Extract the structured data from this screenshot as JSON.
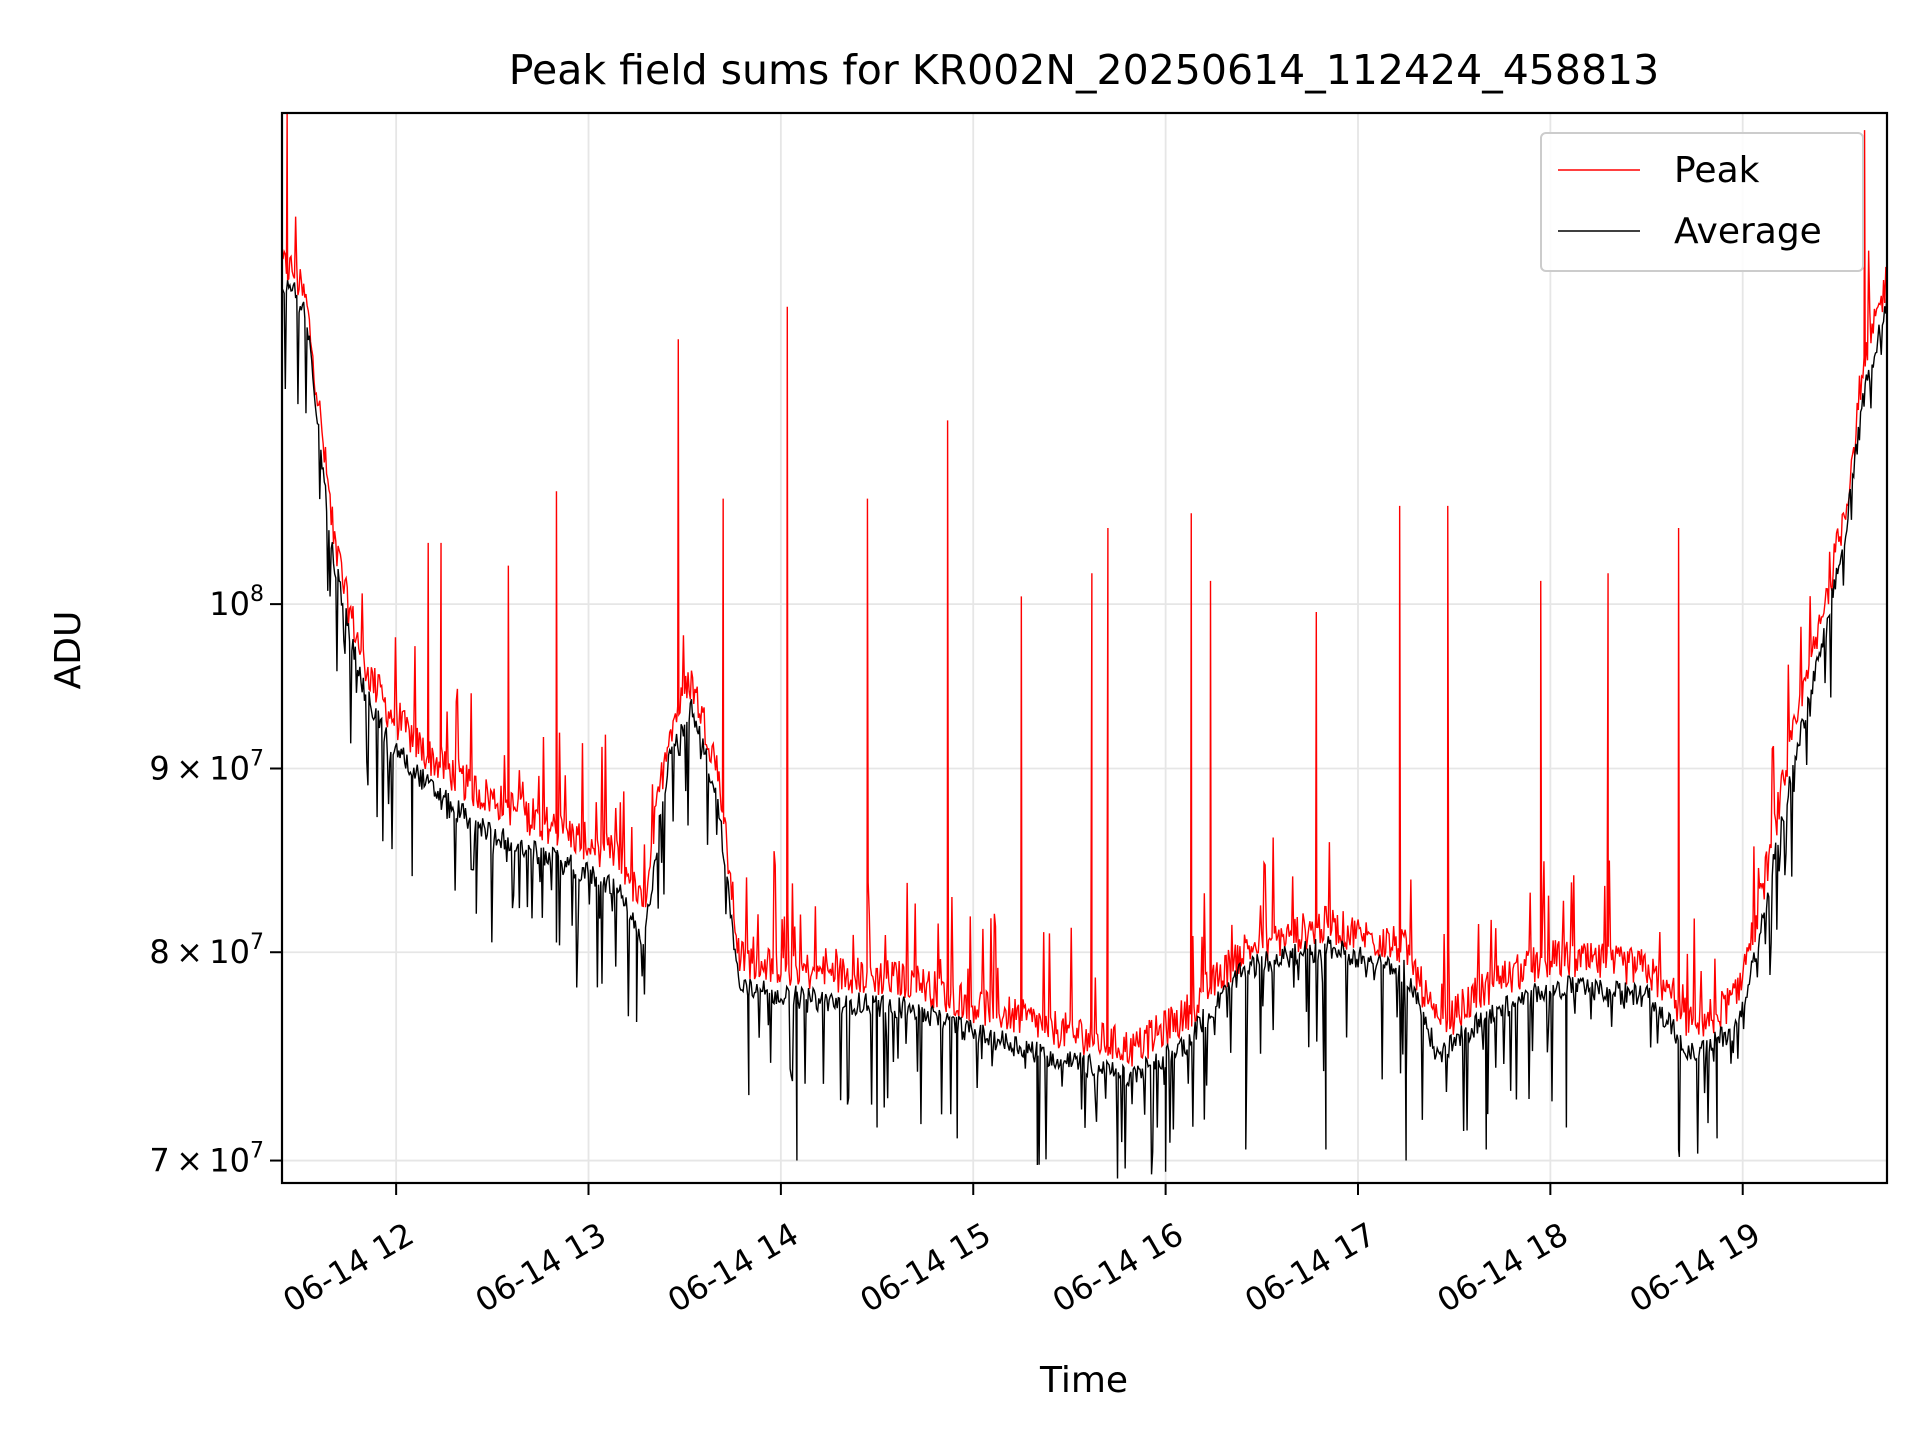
{
  "chart_data": {
    "type": "line",
    "title": "Peak field sums for KR002N_20250614_112424_458813",
    "xlabel": "Time",
    "ylabel": "ADU",
    "y_scale": "log",
    "ylim": [
      69000000,
      137000000
    ],
    "xlim": [
      "2025-06-14T11:24:24",
      "2025-06-14T19:45:00"
    ],
    "grid": true,
    "legend_position": "top-right",
    "x_tick_labels": [
      {
        "x": "2025-06-14T12:00",
        "label": "06-14 12"
      },
      {
        "x": "2025-06-14T13:00",
        "label": "06-14 13"
      },
      {
        "x": "2025-06-14T14:00",
        "label": "06-14 14"
      },
      {
        "x": "2025-06-14T15:00",
        "label": "06-14 15"
      },
      {
        "x": "2025-06-14T16:00",
        "label": "06-14 16"
      },
      {
        "x": "2025-06-14T17:00",
        "label": "06-14 17"
      },
      {
        "x": "2025-06-14T18:00",
        "label": "06-14 18"
      },
      {
        "x": "2025-06-14T19:00",
        "label": "06-14 19"
      }
    ],
    "y_ticks": [
      {
        "value": 70000000,
        "base": "7",
        "exponent": "7"
      },
      {
        "value": 80000000,
        "base": "8",
        "exponent": "7"
      },
      {
        "value": 90000000,
        "base": "9",
        "exponent": "7"
      },
      {
        "value": 100000000,
        "base": "10",
        "exponent": "8"
      }
    ],
    "series": [
      {
        "name": "Peak",
        "color": "#ff0000",
        "trend": [
          [
            "2025-06-14T11:24",
            124000000
          ],
          [
            "2025-06-14T11:28",
            123500000
          ],
          [
            "2025-06-14T11:32",
            121000000
          ],
          [
            "2025-06-14T11:36",
            113000000
          ],
          [
            "2025-06-14T11:40",
            105000000
          ],
          [
            "2025-06-14T11:44",
            100500000
          ],
          [
            "2025-06-14T11:50",
            96000000
          ],
          [
            "2025-06-14T11:58",
            93000000
          ],
          [
            "2025-06-14T12:10",
            90500000
          ],
          [
            "2025-06-14T12:25",
            88500000
          ],
          [
            "2025-06-14T12:40",
            87200000
          ],
          [
            "2025-06-14T12:55",
            86000000
          ],
          [
            "2025-06-14T13:10",
            84800000
          ],
          [
            "2025-06-14T13:17",
            82000000
          ],
          [
            "2025-06-14T13:25",
            92000000
          ],
          [
            "2025-06-14T13:32",
            95000000
          ],
          [
            "2025-06-14T13:40",
            90000000
          ],
          [
            "2025-06-14T13:47",
            79500000
          ],
          [
            "2025-06-14T14:10",
            78800000
          ],
          [
            "2025-06-14T14:40",
            78400000
          ],
          [
            "2025-06-14T15:00",
            77200000
          ],
          [
            "2025-06-14T15:30",
            75800000
          ],
          [
            "2025-06-14T15:50",
            75000000
          ],
          [
            "2025-06-14T16:05",
            76500000
          ],
          [
            "2025-06-14T16:25",
            80000000
          ],
          [
            "2025-06-14T16:50",
            81200000
          ],
          [
            "2025-06-14T17:15",
            80000000
          ],
          [
            "2025-06-14T17:25",
            76000000
          ],
          [
            "2025-06-14T17:40",
            78000000
          ],
          [
            "2025-06-14T18:00",
            79500000
          ],
          [
            "2025-06-14T18:30",
            79000000
          ],
          [
            "2025-06-14T18:45",
            76000000
          ],
          [
            "2025-06-14T18:58",
            77500000
          ],
          [
            "2025-06-14T19:05",
            82000000
          ],
          [
            "2025-06-14T19:15",
            91000000
          ],
          [
            "2025-06-14T19:25",
            99000000
          ],
          [
            "2025-06-14T19:32",
            106000000
          ],
          [
            "2025-06-14T19:38",
            116000000
          ],
          [
            "2025-06-14T19:45",
            123000000
          ]
        ],
        "spikes": [
          [
            "2025-06-14T11:26",
            137000000
          ],
          [
            "2025-06-14T12:10",
            104000000
          ],
          [
            "2025-06-14T12:14",
            104000000
          ],
          [
            "2025-06-14T12:35",
            102500000
          ],
          [
            "2025-06-14T12:50",
            107500000
          ],
          [
            "2025-06-14T13:28",
            118500000
          ],
          [
            "2025-06-14T13:42",
            107000000
          ],
          [
            "2025-06-14T14:02",
            121000000
          ],
          [
            "2025-06-14T14:27",
            107000000
          ],
          [
            "2025-06-14T14:52",
            112500000
          ],
          [
            "2025-06-14T15:15",
            100500000
          ],
          [
            "2025-06-14T15:37",
            102000000
          ],
          [
            "2025-06-14T15:42",
            105000000
          ],
          [
            "2025-06-14T16:08",
            106000000
          ],
          [
            "2025-06-14T16:14",
            101500000
          ],
          [
            "2025-06-14T16:47",
            99500000
          ],
          [
            "2025-06-14T17:13",
            106500000
          ],
          [
            "2025-06-14T17:28",
            106500000
          ],
          [
            "2025-06-14T17:57",
            101500000
          ],
          [
            "2025-06-14T18:18",
            102000000
          ],
          [
            "2025-06-14T18:40",
            105000000
          ],
          [
            "2025-06-14T19:38",
            135500000
          ]
        ]
      },
      {
        "name": "Average",
        "color": "#000000",
        "trend": [
          [
            "2025-06-14T11:24",
            123000000
          ],
          [
            "2025-06-14T11:28",
            122500000
          ],
          [
            "2025-06-14T11:32",
            120000000
          ],
          [
            "2025-06-14T11:36",
            111500000
          ],
          [
            "2025-06-14T11:40",
            103500000
          ],
          [
            "2025-06-14T11:44",
            99500000
          ],
          [
            "2025-06-14T11:50",
            94500000
          ],
          [
            "2025-06-14T11:58",
            91500000
          ],
          [
            "2025-06-14T12:10",
            89000000
          ],
          [
            "2025-06-14T12:25",
            86800000
          ],
          [
            "2025-06-14T12:40",
            85500000
          ],
          [
            "2025-06-14T12:55",
            84500000
          ],
          [
            "2025-06-14T13:10",
            83300000
          ],
          [
            "2025-06-14T13:17",
            80000000
          ],
          [
            "2025-06-14T13:25",
            90500000
          ],
          [
            "2025-06-14T13:32",
            93500000
          ],
          [
            "2025-06-14T13:40",
            88500000
          ],
          [
            "2025-06-14T13:47",
            78200000
          ],
          [
            "2025-06-14T14:10",
            77600000
          ],
          [
            "2025-06-14T14:40",
            77200000
          ],
          [
            "2025-06-14T15:00",
            76000000
          ],
          [
            "2025-06-14T15:30",
            74600000
          ],
          [
            "2025-06-14T15:50",
            73900000
          ],
          [
            "2025-06-14T16:05",
            75300000
          ],
          [
            "2025-06-14T16:25",
            79200000
          ],
          [
            "2025-06-14T16:50",
            80300000
          ],
          [
            "2025-06-14T17:15",
            79000000
          ],
          [
            "2025-06-14T17:25",
            74800000
          ],
          [
            "2025-06-14T17:40",
            76800000
          ],
          [
            "2025-06-14T18:00",
            78300000
          ],
          [
            "2025-06-14T18:30",
            77800000
          ],
          [
            "2025-06-14T18:45",
            74800000
          ],
          [
            "2025-06-14T18:58",
            76300000
          ],
          [
            "2025-06-14T19:05",
            80500000
          ],
          [
            "2025-06-14T19:15",
            89500000
          ],
          [
            "2025-06-14T19:25",
            97500000
          ],
          [
            "2025-06-14T19:32",
            104500000
          ],
          [
            "2025-06-14T19:38",
            114500000
          ],
          [
            "2025-06-14T19:45",
            121500000
          ]
        ],
        "dips": [
          [
            "2025-06-14T12:05",
            84000000
          ],
          [
            "2025-06-14T12:25",
            82000000
          ],
          [
            "2025-06-14T12:50",
            80500000
          ],
          [
            "2025-06-14T13:15",
            76500000
          ],
          [
            "2025-06-14T13:50",
            73000000
          ],
          [
            "2025-06-14T14:05",
            70000000
          ],
          [
            "2025-06-14T14:30",
            71500000
          ],
          [
            "2025-06-14T14:55",
            71000000
          ],
          [
            "2025-06-14T15:20",
            69800000
          ],
          [
            "2025-06-14T15:45",
            69200000
          ],
          [
            "2025-06-14T16:00",
            69500000
          ],
          [
            "2025-06-14T16:25",
            70500000
          ],
          [
            "2025-06-14T16:50",
            70500000
          ],
          [
            "2025-06-14T17:15",
            70000000
          ],
          [
            "2025-06-14T17:40",
            70500000
          ],
          [
            "2025-06-14T18:05",
            71500000
          ],
          [
            "2025-06-14T18:40",
            70500000
          ],
          [
            "2025-06-14T18:52",
            71000000
          ]
        ]
      }
    ]
  }
}
